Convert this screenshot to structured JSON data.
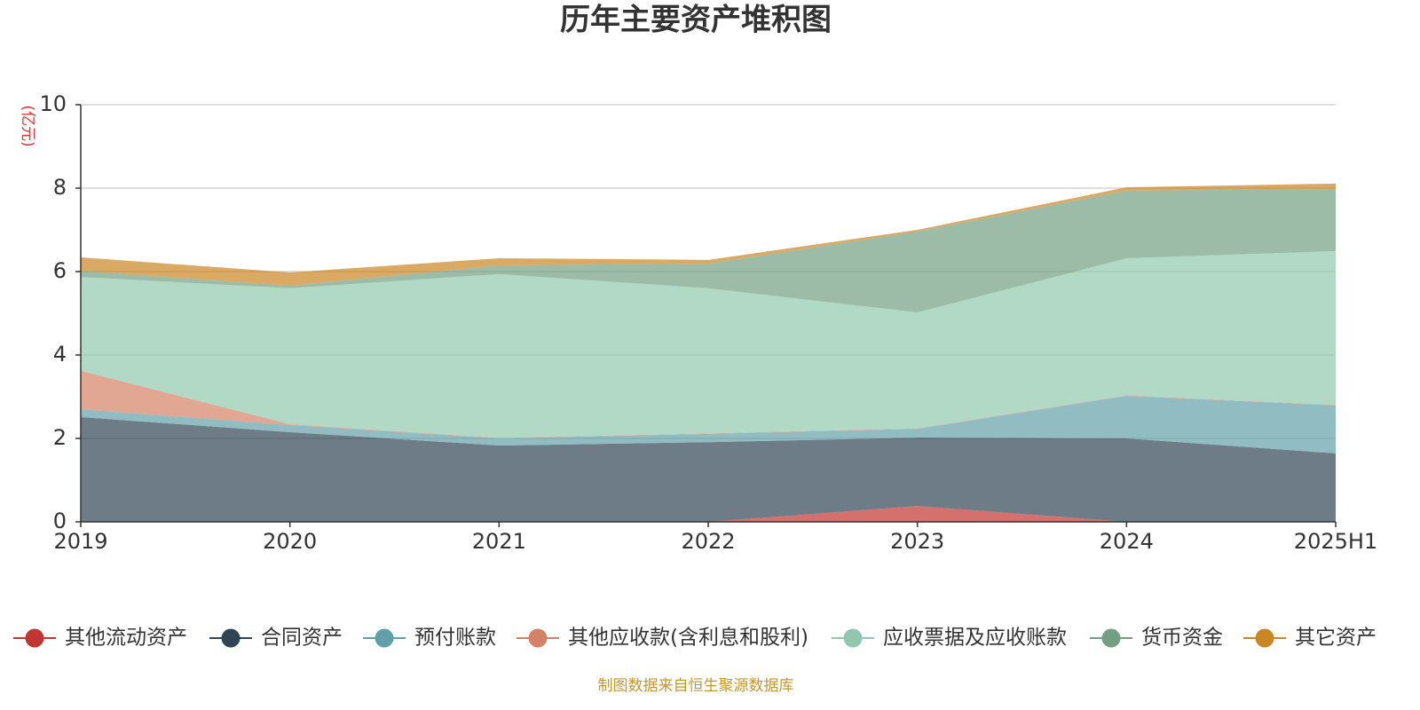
{
  "chart_data": {
    "type": "area",
    "stacked": true,
    "title": "历年主要资产堆积图",
    "ylabel": "(亿元)",
    "categories": [
      "2019",
      "2020",
      "2021",
      "2022",
      "2023",
      "2024",
      "2025H1"
    ],
    "ylim": [
      0,
      10
    ],
    "yticks": [
      0,
      2,
      4,
      6,
      8,
      10
    ],
    "grid": true,
    "series": [
      {
        "name": "其他流动资产",
        "color": "#c23531",
        "values": [
          0,
          0,
          0,
          0,
          0.38,
          0,
          0
        ]
      },
      {
        "name": "合同资产",
        "color": "#2f4554",
        "values": [
          2.51,
          2.15,
          1.83,
          1.91,
          1.64,
          2.0,
          1.64
        ]
      },
      {
        "name": "预付账款",
        "color": "#61a0a8",
        "values": [
          0.19,
          0.17,
          0.17,
          0.2,
          0.21,
          1.02,
          1.15
        ]
      },
      {
        "name": "其他应收款(含利息和股利)",
        "color": "#d48265",
        "values": [
          0.92,
          0.02,
          0.01,
          0.01,
          0.01,
          0.01,
          0.01
        ]
      },
      {
        "name": "应收票据及应收账款",
        "color": "#91c7ae",
        "values": [
          2.25,
          3.26,
          3.93,
          3.48,
          2.78,
          3.29,
          3.69
        ]
      },
      {
        "name": "货币资金",
        "color": "#749f83",
        "values": [
          0.15,
          0.06,
          0.21,
          0.59,
          1.94,
          1.62,
          1.49
        ]
      },
      {
        "name": "其它资产",
        "color": "#ca8622",
        "values": [
          0.32,
          0.32,
          0.17,
          0.09,
          0.04,
          0.08,
          0.13
        ]
      }
    ]
  },
  "source_note": "制图数据来自恒生聚源数据库"
}
